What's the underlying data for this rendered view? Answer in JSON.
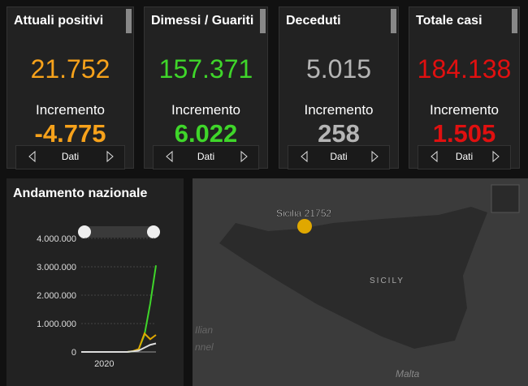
{
  "cards": [
    {
      "title": "Attuali positivi",
      "value": "21.752",
      "increment_label": "Incremento",
      "increment": "-4.775",
      "footer_label": "Dati",
      "color": "#f7a21b"
    },
    {
      "title": "Dimessi / Guariti",
      "value": "157.371",
      "increment_label": "Incremento",
      "increment": "6.022",
      "footer_label": "Dati",
      "color": "#3fd62a"
    },
    {
      "title": "Deceduti",
      "value": "5.015",
      "increment_label": "Incremento",
      "increment": "258",
      "footer_label": "Dati",
      "color": "#b5b5b5"
    },
    {
      "title": "Totale casi",
      "value": "184.138",
      "increment_label": "Incremento",
      "increment": "1.505",
      "footer_label": "Dati",
      "color": "#e01010"
    }
  ],
  "chart": {
    "type": "line",
    "title": "Andamento nazionale",
    "categories": [
      null,
      null,
      null,
      null,
      "2020",
      null,
      null,
      null,
      null,
      null,
      null,
      null,
      null,
      null
    ],
    "ylim": [
      0,
      4000000
    ],
    "yticks": [
      {
        "value": 0,
        "label": "0"
      },
      {
        "value": 1000000,
        "label": "1.000.000"
      },
      {
        "value": 2000000,
        "label": "2.000.000"
      },
      {
        "value": 3000000,
        "label": "3.000.000"
      },
      {
        "value": 4000000,
        "label": "4.000.000"
      }
    ],
    "grid": true,
    "series": [
      {
        "color": "#3fd62a",
        "values": [
          0,
          0,
          0,
          0,
          0,
          0,
          0,
          0,
          0,
          20000,
          100000,
          600000,
          1700000,
          3050000
        ]
      },
      {
        "color": "#e0a800",
        "values": [
          0,
          0,
          0,
          0,
          0,
          0,
          0,
          0,
          0,
          30000,
          100000,
          650000,
          450000,
          600000
        ]
      },
      {
        "color": "#dddddd",
        "values": [
          0,
          0,
          0,
          0,
          0,
          0,
          0,
          0,
          0,
          20000,
          50000,
          150000,
          250000,
          300000
        ]
      }
    ]
  },
  "map": {
    "point_label": "Sicilia 21752",
    "labels": [
      "SICILY",
      "Ilian",
      "nnel",
      "Malta"
    ]
  }
}
